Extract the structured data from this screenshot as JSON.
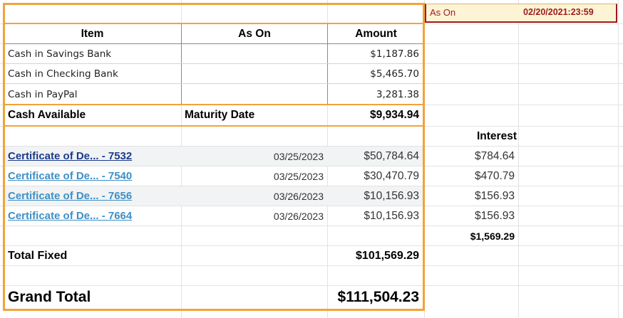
{
  "ason_box": {
    "label": "As On",
    "value": "02/20/2021:23:59"
  },
  "header": {
    "item": "Item",
    "as_on": "As On",
    "amount": "Amount"
  },
  "cash_rows": [
    {
      "item": "Cash in Savings Bank",
      "amount": "$1,187.86"
    },
    {
      "item": "Cash in Checking Bank",
      "amount": "$5,465.70"
    },
    {
      "item": "Cash in PayPal",
      "amount": "3,281.38"
    }
  ],
  "cash_total": {
    "label": "Cash Available",
    "mid": "Maturity Date",
    "amount": "$9,934.94"
  },
  "interest_header": "Interest",
  "cd_rows": [
    {
      "name": "Certificate of De... - 7532",
      "date": "03/25/2023",
      "amount": "$50,784.64",
      "interest": "$784.64",
      "color": "#1b3a8a"
    },
    {
      "name": "Certificate of De... - 7540",
      "date": "03/25/2023",
      "amount": "$30,470.79",
      "interest": "$470.79",
      "color": "#3d8fc6"
    },
    {
      "name": "Certificate of De... - 7656",
      "date": "03/26/2023",
      "amount": "$10,156.93",
      "interest": "$156.93",
      "color": "#3d8fc6"
    },
    {
      "name": "Certificate of De... - 7664",
      "date": "03/26/2023",
      "amount": "$10,156.93",
      "interest": "$156.93",
      "color": "#3d8fc6"
    }
  ],
  "interest_total": "$1,569.29",
  "total_fixed": {
    "label": "Total Fixed",
    "amount": "$101,569.29"
  },
  "grand_total": {
    "label": "Grand Total",
    "amount": "$111,504.23"
  }
}
